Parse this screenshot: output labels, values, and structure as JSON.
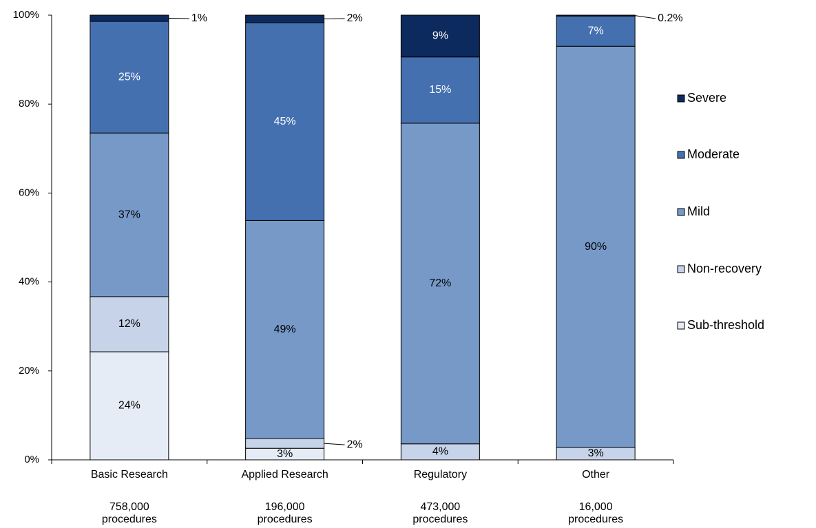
{
  "chart_data": {
    "type": "stacked_bar",
    "categories": [
      "Basic Research",
      "Applied Research",
      "Regulatory",
      "Other"
    ],
    "category_notes": [
      [
        "758,000",
        "procedures"
      ],
      [
        "196,000",
        "procedures"
      ],
      [
        "473,000",
        "procedures"
      ],
      [
        "16,000",
        "procedures"
      ]
    ],
    "series": [
      {
        "name": "Sub-threshold",
        "color": "#e6ecf5",
        "values": [
          24.3,
          2.6,
          0,
          0
        ],
        "value_labels": [
          "24%",
          "3%",
          null,
          null
        ]
      },
      {
        "name": "Non-recovery",
        "color": "#c6d3e8",
        "values": [
          12.4,
          2.2,
          3.6,
          2.8
        ],
        "value_labels": [
          "12%",
          "2%",
          "4%",
          "3%"
        ]
      },
      {
        "name": "Mild",
        "color": "#7799c8",
        "values": [
          36.8,
          49.0,
          72.1,
          90.2
        ],
        "value_labels": [
          "37%",
          "49%",
          "72%",
          "90%"
        ]
      },
      {
        "name": "Moderate",
        "color": "#4570b0",
        "values": [
          25.1,
          44.5,
          14.9,
          6.8
        ],
        "value_labels": [
          "25%",
          "45%",
          "15%",
          "7%"
        ]
      },
      {
        "name": "Severe",
        "color": "#0d2a5e",
        "values": [
          1.4,
          1.7,
          9.4,
          0.2
        ],
        "value_labels": [
          "1%",
          "2%",
          "9%",
          "0.2%"
        ]
      }
    ],
    "ylim": [
      0,
      100
    ],
    "yticks": [
      {
        "value": 0,
        "label": "0%"
      },
      {
        "value": 20,
        "label": "20%"
      },
      {
        "value": 40,
        "label": "40%"
      },
      {
        "value": 60,
        "label": "60%"
      },
      {
        "value": 80,
        "label": "80%"
      },
      {
        "value": 100,
        "label": "100%"
      }
    ],
    "grid": false,
    "legend": "right"
  }
}
